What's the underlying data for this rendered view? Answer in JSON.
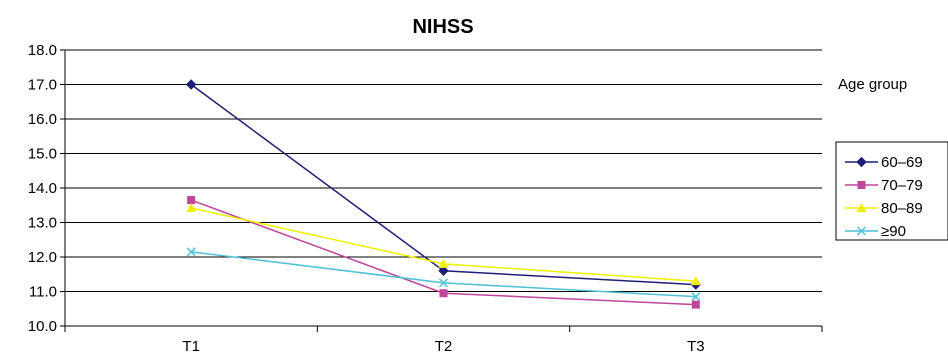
{
  "chart_data": {
    "type": "line",
    "title": "NIHSS",
    "xlabel": "",
    "ylabel": "",
    "categories": [
      "T1",
      "T2",
      "T3"
    ],
    "ylim": [
      10.0,
      18.0
    ],
    "yticks": [
      "10.0",
      "11.0",
      "12.0",
      "13.0",
      "14.0",
      "15.0",
      "16.0",
      "17.0",
      "18.0"
    ],
    "grid": true,
    "legend_title": "Age group",
    "legend_position": "right",
    "series": [
      {
        "name": "60–69",
        "values": [
          17.0,
          11.6,
          11.2
        ],
        "color": "#1f1f7a",
        "marker": "diamond"
      },
      {
        "name": "70–79",
        "values": [
          13.65,
          10.95,
          10.62
        ],
        "color": "#c0449a",
        "marker": "square"
      },
      {
        "name": "80–89",
        "values": [
          13.42,
          11.8,
          11.3
        ],
        "color": "#f0f000",
        "marker": "triangle"
      },
      {
        "name": "≥90",
        "values": [
          12.15,
          11.25,
          10.85
        ],
        "color": "#4fc0d8",
        "marker": "x"
      }
    ]
  }
}
